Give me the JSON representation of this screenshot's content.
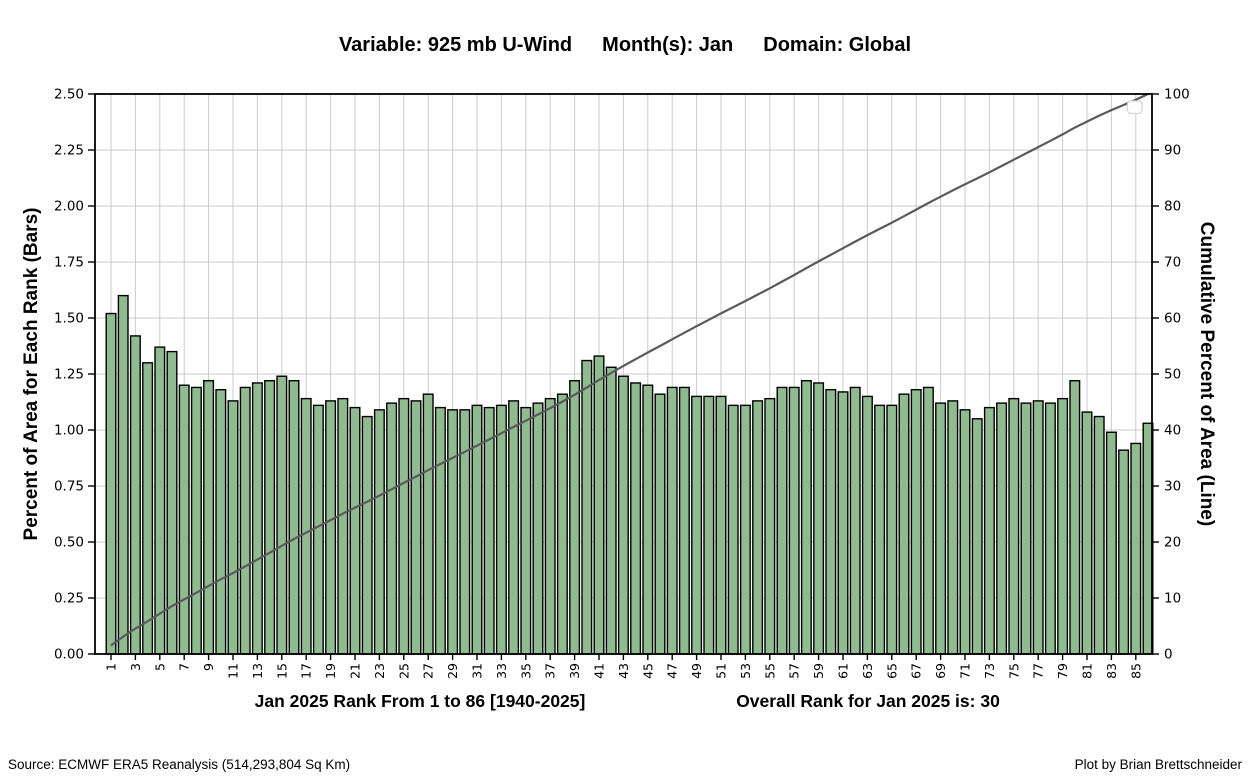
{
  "title": {
    "part_variable": "Variable: 925 mb U-Wind",
    "part_month": "Month(s): Jan",
    "part_domain": "Domain: Global"
  },
  "axes": {
    "ylabel_left": "Percent of Area for Each Rank (Bars)",
    "ylabel_right": "Cumulative Percent of Area (Line)",
    "x_caption_left": "Jan 2025 Rank From 1 to 86  [1940-2025]",
    "x_caption_right": "Overall Rank for Jan 2025 is: 30"
  },
  "footer": {
    "source": "Source: ECMWF ERA5 Reanalysis (514,293,804 Sq Km)",
    "credit": "Plot by Brian Brettschneider"
  },
  "legend": {
    "present": true,
    "entries": []
  },
  "chart_data": {
    "type": "bar",
    "title": "Variable: 925 mb U-Wind    Month(s): Jan    Domain: Global",
    "xlabel": "Jan 2025 Rank From 1 to 86  [1940-2025]",
    "ylabel": "Percent of Area for Each Rank (Bars)",
    "ylabel_secondary": "Cumulative Percent of Area (Line)",
    "x_start": 1,
    "x_end": 86,
    "xtick_labels": [
      "1",
      "3",
      "5",
      "7",
      "9",
      "11",
      "13",
      "15",
      "17",
      "19",
      "21",
      "23",
      "25",
      "27",
      "29",
      "31",
      "33",
      "35",
      "37",
      "39",
      "41",
      "43",
      "45",
      "47",
      "49",
      "51",
      "53",
      "55",
      "57",
      "59",
      "61",
      "63",
      "65",
      "67",
      "69",
      "71",
      "73",
      "75",
      "77",
      "79",
      "81",
      "83",
      "85"
    ],
    "ytick_labels_left": [
      "0.00",
      "0.25",
      "0.50",
      "0.75",
      "1.00",
      "1.25",
      "1.50",
      "1.75",
      "2.00",
      "2.25",
      "2.50"
    ],
    "ytick_labels_right": [
      "0",
      "10",
      "20",
      "30",
      "40",
      "50",
      "60",
      "70",
      "80",
      "90",
      "100"
    ],
    "ylim_left": [
      0,
      2.5
    ],
    "ylim_right": [
      0,
      100
    ],
    "grid": true,
    "series": [
      {
        "name": "Percent of Area for Each Rank",
        "style": "bar",
        "values": [
          1.52,
          1.6,
          1.42,
          1.3,
          1.37,
          1.35,
          1.2,
          1.19,
          1.22,
          1.18,
          1.13,
          1.19,
          1.21,
          1.22,
          1.24,
          1.22,
          1.14,
          1.11,
          1.13,
          1.14,
          1.1,
          1.06,
          1.09,
          1.12,
          1.14,
          1.13,
          1.16,
          1.1,
          1.09,
          1.09,
          1.11,
          1.1,
          1.11,
          1.13,
          1.1,
          1.12,
          1.14,
          1.16,
          1.22,
          1.31,
          1.33,
          1.28,
          1.24,
          1.21,
          1.2,
          1.16,
          1.19,
          1.19,
          1.15,
          1.15,
          1.15,
          1.11,
          1.11,
          1.13,
          1.14,
          1.19,
          1.19,
          1.22,
          1.21,
          1.18,
          1.17,
          1.19,
          1.15,
          1.11,
          1.11,
          1.16,
          1.18,
          1.19,
          1.12,
          1.13,
          1.09,
          1.05,
          1.1,
          1.12,
          1.14,
          1.12,
          1.13,
          1.12,
          1.14,
          1.22,
          1.08,
          1.06,
          0.99,
          0.91,
          0.94,
          1.03
        ]
      },
      {
        "name": "Cumulative Percent of Area",
        "style": "line",
        "derivation": "cumulative_sum_of_bars_normalized_to_100"
      }
    ],
    "colors": {
      "bar_fill": "#8fbc8f",
      "bar_edge": "#000000",
      "line": "#5a5a5a",
      "grid": "#cbcbcb",
      "spine": "#000000",
      "legend_border": "#d2d2d2"
    }
  }
}
